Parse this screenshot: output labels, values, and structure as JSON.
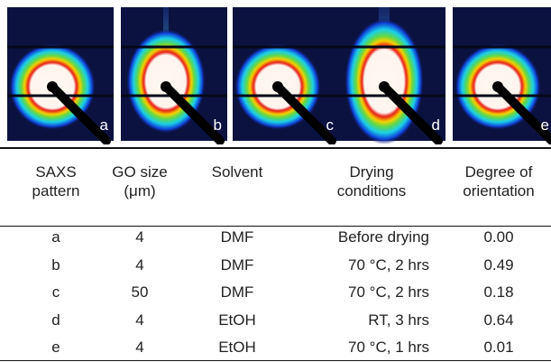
{
  "panels": [
    {
      "label": "a"
    },
    {
      "label": "b"
    },
    {
      "label": "c"
    },
    {
      "label": "d"
    },
    {
      "label": "e"
    }
  ],
  "table": {
    "headers": [
      "SAXS pattern",
      "GO size (μm)",
      "Solvent",
      "Drying conditions",
      "Degree of orientation"
    ],
    "rows": [
      [
        "a",
        "4",
        "DMF",
        "Before drying",
        "0.00"
      ],
      [
        "b",
        "4",
        "DMF",
        "70 °C, 2 hrs",
        "0.49"
      ],
      [
        "c",
        "50",
        "DMF",
        "70 °C, 2 hrs",
        "0.18"
      ],
      [
        "d",
        "4",
        "EtOH",
        "RT, 3 hrs",
        "0.64"
      ],
      [
        "e",
        "4",
        "EtOH",
        "70 °C, 1 hrs",
        "0.01"
      ]
    ]
  }
}
